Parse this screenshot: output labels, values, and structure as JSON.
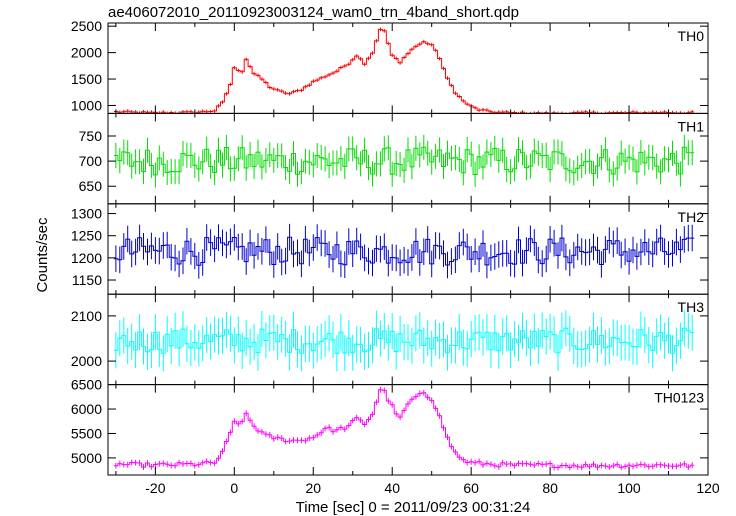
{
  "chart_data": {
    "type": "line",
    "title": "ae406072010_20110923003124_wam0_trn_4band_short.qdp",
    "xlabel": "Time [sec] 0 = 2011/09/23 00:31:24",
    "ylabel": "Counts/sec",
    "xlim": [
      -32,
      120
    ],
    "xticks": [
      -20,
      0,
      20,
      40,
      60,
      80,
      100,
      120
    ],
    "bin_width": 1.0,
    "panels": [
      {
        "name": "TH0",
        "color": "#ff0000",
        "ylim": [
          850,
          2560
        ],
        "yticks": [
          1000,
          1500,
          2000,
          2500
        ],
        "err": 35,
        "knots": [
          [
            -30,
            880
          ],
          [
            -20,
            860
          ],
          [
            -10,
            870
          ],
          [
            -5,
            900
          ],
          [
            -3,
            1050
          ],
          [
            -1,
            1400
          ],
          [
            0,
            1700
          ],
          [
            2,
            1650
          ],
          [
            3,
            1880
          ],
          [
            5,
            1600
          ],
          [
            7,
            1500
          ],
          [
            9,
            1350
          ],
          [
            11,
            1280
          ],
          [
            14,
            1220
          ],
          [
            17,
            1300
          ],
          [
            20,
            1450
          ],
          [
            23,
            1550
          ],
          [
            26,
            1650
          ],
          [
            29,
            1800
          ],
          [
            31,
            1950
          ],
          [
            33,
            1800
          ],
          [
            35,
            2000
          ],
          [
            37,
            2450
          ],
          [
            38,
            2400
          ],
          [
            40,
            1950
          ],
          [
            42,
            1800
          ],
          [
            44,
            2000
          ],
          [
            46,
            2120
          ],
          [
            48,
            2200
          ],
          [
            50,
            2150
          ],
          [
            52,
            1900
          ],
          [
            54,
            1500
          ],
          [
            56,
            1250
          ],
          [
            58,
            1080
          ],
          [
            60,
            980
          ],
          [
            62,
            920
          ],
          [
            65,
            880
          ],
          [
            70,
            860
          ],
          [
            80,
            850
          ],
          [
            90,
            860
          ],
          [
            100,
            860
          ],
          [
            110,
            870
          ],
          [
            116,
            860
          ]
        ],
        "noise": 20
      },
      {
        "name": "TH1",
        "color": "#00dd00",
        "ylim": [
          615,
          795
        ],
        "yticks": [
          650,
          700,
          750
        ],
        "err": 25,
        "knots": [
          [
            -30,
            700
          ],
          [
            116,
            700
          ]
        ],
        "noise": 28
      },
      {
        "name": "TH2",
        "color": "#0000cc",
        "ylim": [
          1118,
          1322
        ],
        "yticks": [
          1150,
          1200,
          1250,
          1300
        ],
        "err": 30,
        "knots": [
          [
            -30,
            1215
          ],
          [
            116,
            1215
          ]
        ],
        "noise": 32
      },
      {
        "name": "TH3",
        "color": "#00ffff",
        "ylim": [
          1948,
          2148
        ],
        "yticks": [
          2000,
          2100
        ],
        "err": 40,
        "knots": [
          [
            -30,
            2045
          ],
          [
            116,
            2045
          ]
        ],
        "noise": 28
      },
      {
        "name": "TH0123",
        "color": "#ff00ff",
        "ylim": [
          4650,
          6500
        ],
        "yticks": [
          5000,
          5500,
          6000,
          6500
        ],
        "err": 60,
        "knots": [
          [
            -30,
            4870
          ],
          [
            -20,
            4850
          ],
          [
            -10,
            4870
          ],
          [
            -5,
            4900
          ],
          [
            -3,
            5100
          ],
          [
            -1,
            5500
          ],
          [
            0,
            5750
          ],
          [
            2,
            5700
          ],
          [
            3,
            5900
          ],
          [
            5,
            5650
          ],
          [
            8,
            5450
          ],
          [
            12,
            5380
          ],
          [
            16,
            5350
          ],
          [
            20,
            5420
          ],
          [
            23,
            5600
          ],
          [
            26,
            5560
          ],
          [
            29,
            5650
          ],
          [
            31,
            5800
          ],
          [
            33,
            5700
          ],
          [
            35,
            5900
          ],
          [
            37,
            6400
          ],
          [
            38,
            6350
          ],
          [
            40,
            6050
          ],
          [
            42,
            5800
          ],
          [
            44,
            6100
          ],
          [
            46,
            6250
          ],
          [
            48,
            6300
          ],
          [
            50,
            6200
          ],
          [
            52,
            5900
          ],
          [
            54,
            5400
          ],
          [
            56,
            5100
          ],
          [
            58,
            4950
          ],
          [
            60,
            4900
          ],
          [
            65,
            4870
          ],
          [
            70,
            4850
          ],
          [
            80,
            4850
          ],
          [
            90,
            4840
          ],
          [
            100,
            4850
          ],
          [
            110,
            4850
          ],
          [
            116,
            4840
          ]
        ],
        "noise": 45
      }
    ]
  }
}
